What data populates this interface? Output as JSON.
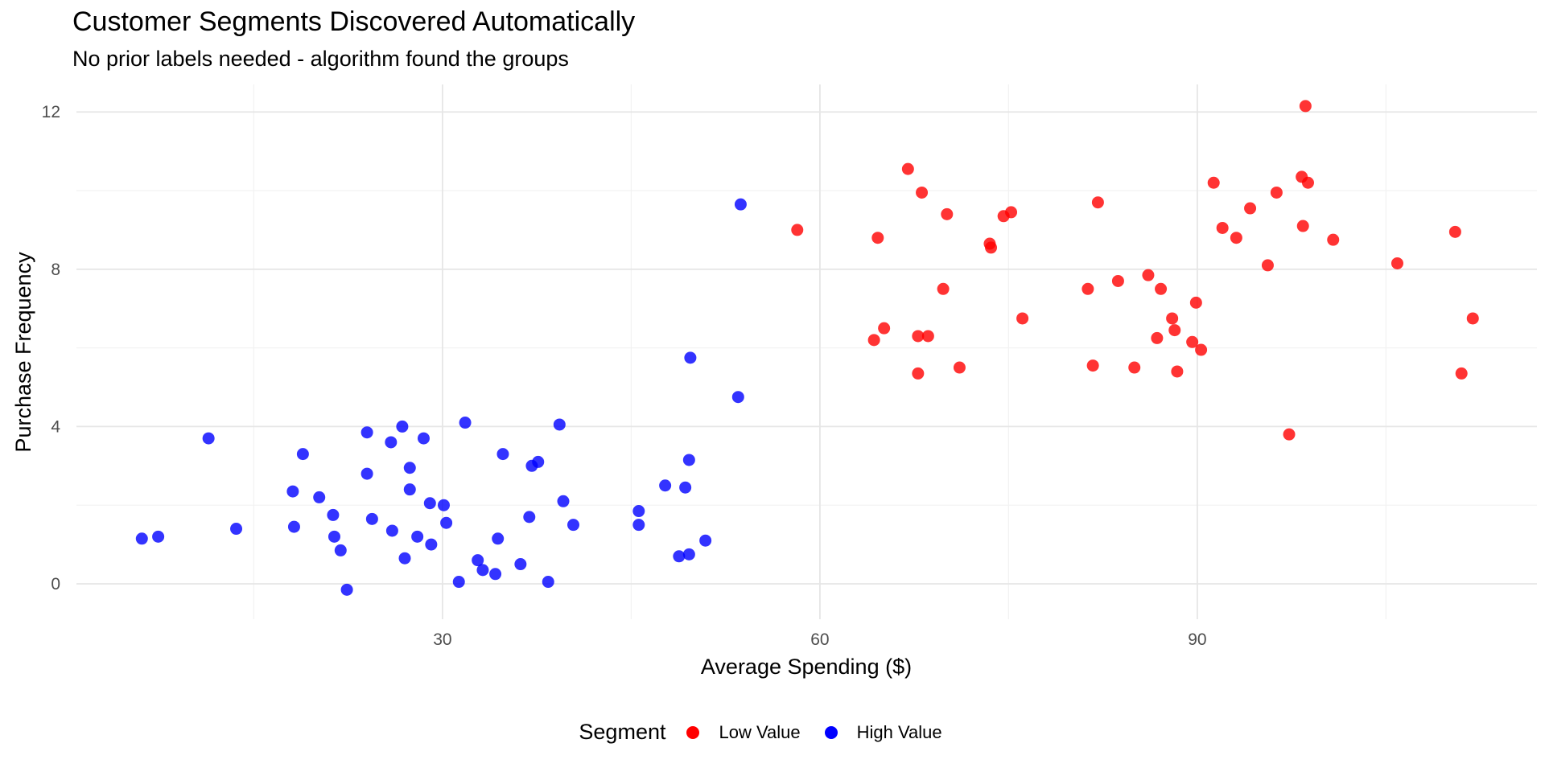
{
  "chart_data": {
    "type": "scatter",
    "title": "Customer Segments Discovered Automatically",
    "subtitle": "No prior labels needed - algorithm found the groups",
    "xlabel": "Average Spending ($)",
    "ylabel": "Purchase Frequency",
    "xlim": [
      0.9,
      117
    ],
    "ylim": [
      -0.9,
      12.7
    ],
    "x_ticks": [
      30,
      60,
      90
    ],
    "x_tick_labels": [
      "30",
      "60",
      "90"
    ],
    "y_ticks": [
      0,
      4,
      8,
      12
    ],
    "y_tick_labels": [
      "0",
      "4",
      "8",
      "12"
    ],
    "grid": true,
    "legend": {
      "title": "Segment",
      "position": "bottom"
    },
    "series": [
      {
        "name": "Low Value",
        "color": "#ff0000",
        "points": [
          [
            58.2,
            9.0
          ],
          [
            64.3,
            6.2
          ],
          [
            64.6,
            8.8
          ],
          [
            65.1,
            6.5
          ],
          [
            67.0,
            10.55
          ],
          [
            67.8,
            6.3
          ],
          [
            67.8,
            5.35
          ],
          [
            68.1,
            9.95
          ],
          [
            68.6,
            6.3
          ],
          [
            69.8,
            7.5
          ],
          [
            70.1,
            9.4
          ],
          [
            71.1,
            5.5
          ],
          [
            73.5,
            8.65
          ],
          [
            73.6,
            8.55
          ],
          [
            74.6,
            9.35
          ],
          [
            75.2,
            9.45
          ],
          [
            76.1,
            6.75
          ],
          [
            81.3,
            7.5
          ],
          [
            81.7,
            5.55
          ],
          [
            82.1,
            9.7
          ],
          [
            83.7,
            7.7
          ],
          [
            85.0,
            5.5
          ],
          [
            86.1,
            7.85
          ],
          [
            86.8,
            6.25
          ],
          [
            87.1,
            7.5
          ],
          [
            88.0,
            6.75
          ],
          [
            88.2,
            6.45
          ],
          [
            88.4,
            5.4
          ],
          [
            89.6,
            6.15
          ],
          [
            89.9,
            7.15
          ],
          [
            90.3,
            5.95
          ],
          [
            91.3,
            10.2
          ],
          [
            92.0,
            9.05
          ],
          [
            93.1,
            8.8
          ],
          [
            94.2,
            9.55
          ],
          [
            95.6,
            8.1
          ],
          [
            96.3,
            9.95
          ],
          [
            97.3,
            3.8
          ],
          [
            98.3,
            10.35
          ],
          [
            98.4,
            9.1
          ],
          [
            98.6,
            12.15
          ],
          [
            98.8,
            10.2
          ],
          [
            100.8,
            8.75
          ],
          [
            105.9,
            8.15
          ],
          [
            110.5,
            8.95
          ],
          [
            111.0,
            5.35
          ],
          [
            111.9,
            6.75
          ]
        ]
      },
      {
        "name": "High Value",
        "color": "#0000ff",
        "points": [
          [
            6.1,
            1.15
          ],
          [
            7.4,
            1.2
          ],
          [
            11.4,
            3.7
          ],
          [
            13.6,
            1.4
          ],
          [
            18.1,
            2.35
          ],
          [
            18.2,
            1.45
          ],
          [
            18.9,
            3.3
          ],
          [
            20.2,
            2.2
          ],
          [
            21.3,
            1.75
          ],
          [
            21.4,
            1.2
          ],
          [
            21.9,
            0.85
          ],
          [
            22.4,
            -0.15
          ],
          [
            24.0,
            3.85
          ],
          [
            24.0,
            2.8
          ],
          [
            24.4,
            1.65
          ],
          [
            25.9,
            3.6
          ],
          [
            26.0,
            1.35
          ],
          [
            26.8,
            4.0
          ],
          [
            27.0,
            0.65
          ],
          [
            27.4,
            2.95
          ],
          [
            27.4,
            2.4
          ],
          [
            28.0,
            1.2
          ],
          [
            28.5,
            3.7
          ],
          [
            29.0,
            2.05
          ],
          [
            29.1,
            1.0
          ],
          [
            30.1,
            2.0
          ],
          [
            30.3,
            1.55
          ],
          [
            31.3,
            0.05
          ],
          [
            31.8,
            4.1
          ],
          [
            32.8,
            0.6
          ],
          [
            33.2,
            0.35
          ],
          [
            34.2,
            0.25
          ],
          [
            34.4,
            1.15
          ],
          [
            34.8,
            3.3
          ],
          [
            36.2,
            0.5
          ],
          [
            36.9,
            1.7
          ],
          [
            37.1,
            3.0
          ],
          [
            37.6,
            3.1
          ],
          [
            38.4,
            0.05
          ],
          [
            39.3,
            4.05
          ],
          [
            39.6,
            2.1
          ],
          [
            40.4,
            1.5
          ],
          [
            45.6,
            1.85
          ],
          [
            45.6,
            1.5
          ],
          [
            47.7,
            2.5
          ],
          [
            48.8,
            0.7
          ],
          [
            49.3,
            2.45
          ],
          [
            49.6,
            3.15
          ],
          [
            49.6,
            0.75
          ],
          [
            49.7,
            5.75
          ],
          [
            50.9,
            1.1
          ],
          [
            53.5,
            4.75
          ],
          [
            53.7,
            9.65
          ]
        ]
      }
    ]
  }
}
